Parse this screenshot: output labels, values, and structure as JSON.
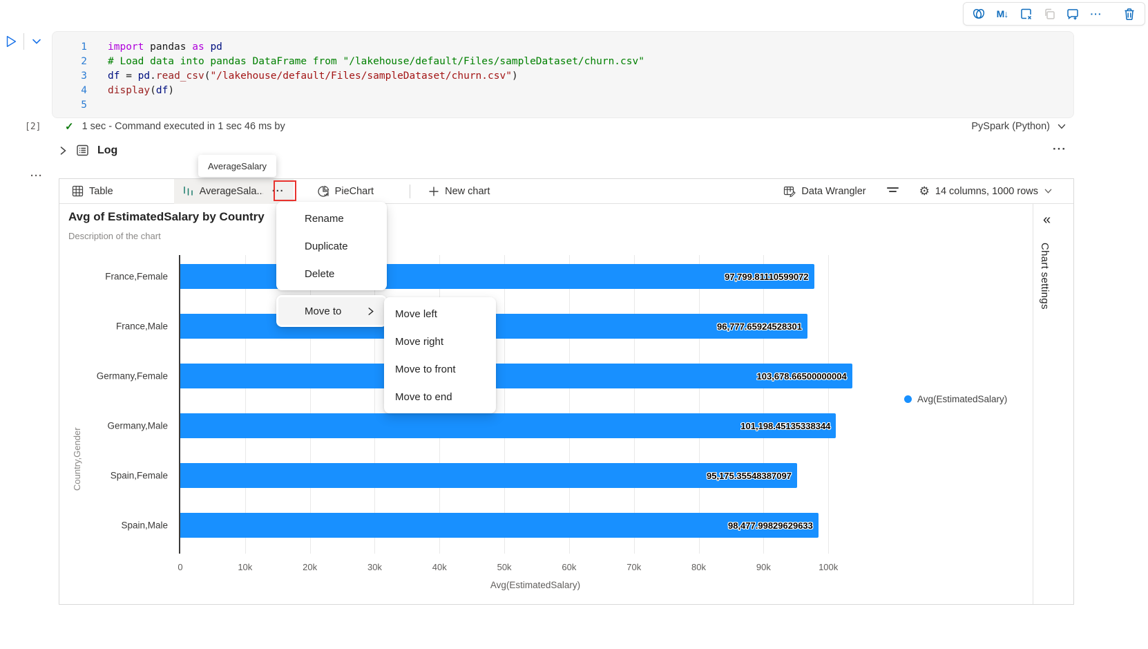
{
  "cell_toolbar": {
    "markdown_glyph": "M↓",
    "more_glyph": "···",
    "icons": [
      "copilot-icon",
      "markdown-icon",
      "clear-output-icon",
      "copy-icon",
      "comment-add-icon",
      "more-icon",
      "delete-icon"
    ],
    "accent_color": "#0f6cbd"
  },
  "code_cell": {
    "execution_count": "[2]",
    "status_check": "✓",
    "status_text": "1 sec - Command executed in 1 sec 46 ms by",
    "kernel_label": "PySpark (Python)",
    "lines": [
      {
        "n": "1",
        "t": [
          [
            "kw",
            "import"
          ],
          [
            "pl",
            " "
          ],
          [
            "pl",
            "pandas"
          ],
          [
            "pl",
            " "
          ],
          [
            "kw",
            "as"
          ],
          [
            "pl",
            " "
          ],
          [
            "vr",
            "pd"
          ]
        ]
      },
      {
        "n": "2",
        "t": [
          [
            "cm",
            "# Load data into pandas DataFrame from \"/lakehouse/default/Files/sampleDataset/churn.csv\""
          ]
        ]
      },
      {
        "n": "3",
        "t": [
          [
            "vr",
            "df"
          ],
          [
            "pl",
            " = "
          ],
          [
            "vr",
            "pd"
          ],
          [
            "pl",
            "."
          ],
          [
            "fn",
            "read_csv"
          ],
          [
            "pl",
            "("
          ],
          [
            "st",
            "\"/lakehouse/default/Files/sampleDataset/churn.csv\""
          ],
          [
            "pl",
            ")"
          ]
        ]
      },
      {
        "n": "4",
        "t": [
          [
            "fn",
            "display"
          ],
          [
            "pl",
            "("
          ],
          [
            "vr",
            "df"
          ],
          [
            "pl",
            ")"
          ]
        ]
      },
      {
        "n": "5",
        "t": []
      }
    ]
  },
  "log": {
    "label": "Log",
    "more_glyph": "···"
  },
  "cell_more_glyph": "···",
  "tooltip_text": "AverageSalary",
  "tabs": {
    "table_label": "Table",
    "selected_label": "AverageSala...",
    "selected_more_glyph": "···",
    "pie_label": "PieChart",
    "new_chart_label": "New chart",
    "data_wrangler_label": "Data Wrangler",
    "columns_rows_label": "14 columns, 1000 rows"
  },
  "chart_header": {
    "title": "Avg of EstimatedSalary by Country",
    "subtitle": "Description of the chart"
  },
  "context_menu": {
    "items": [
      "Rename",
      "Duplicate",
      "Delete"
    ],
    "move_to_label": "Move to",
    "submenu_items": [
      "Move left",
      "Move right",
      "Move to front",
      "Move to end"
    ]
  },
  "right_panel": {
    "collapse_glyph": "«",
    "label": "Chart settings"
  },
  "chart_data": {
    "type": "bar",
    "orientation": "horizontal",
    "title": "Avg of EstimatedSalary by Country",
    "categories": [
      "France,Female",
      "France,Male",
      "Germany,Female",
      "Germany,Male",
      "Spain,Female",
      "Spain,Male"
    ],
    "values": [
      97799.81110599072,
      96777.65924528301,
      103678.66500000004,
      101198.45135338344,
      95175.35548387097,
      98477.99829629633
    ],
    "value_labels": [
      "97,799.81110599072",
      "96,777.65924528301",
      "103,678.66500000004",
      "101,198.45135338344",
      "95,175.35548387097",
      "98,477.99829629633"
    ],
    "xlabel": "Avg(EstimatedSalary)",
    "ylabel": "Country,Gender",
    "xlim": [
      0,
      110000
    ],
    "x_tick_step": 10000,
    "x_ticks": [
      "0",
      "10k",
      "20k",
      "30k",
      "40k",
      "50k",
      "60k",
      "70k",
      "80k",
      "90k",
      "100k"
    ],
    "legend": [
      "Avg(EstimatedSalary)"
    ],
    "legend_position": "right",
    "grid": true,
    "bar_color": "#1890ff"
  }
}
